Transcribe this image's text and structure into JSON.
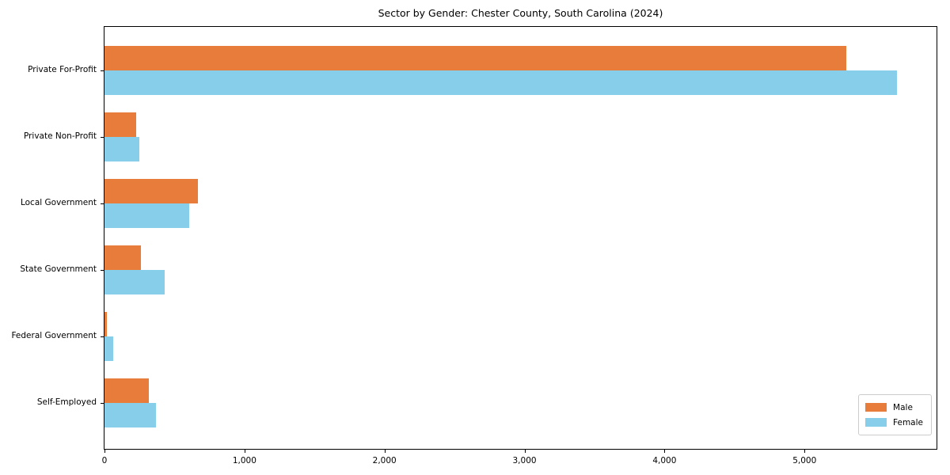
{
  "chart_data": {
    "type": "bar",
    "orientation": "horizontal",
    "title": "Sector by Gender: Chester County, South Carolina (2024)",
    "categories": [
      "Private For-Profit",
      "Private Non-Profit",
      "Local Government",
      "State Government",
      "Federal Government",
      "Self-Employed"
    ],
    "series": [
      {
        "name": "Male",
        "color": "#e87d3b",
        "values": [
          5300,
          225,
          670,
          260,
          15,
          315
        ]
      },
      {
        "name": "Female",
        "color": "#87ceeb",
        "values": [
          5660,
          250,
          605,
          430,
          60,
          365
        ]
      }
    ],
    "xlabel": "",
    "ylabel": "",
    "xlim": [
      0,
      5943
    ],
    "x_ticks": [
      0,
      1000,
      2000,
      3000,
      4000,
      5000
    ],
    "x_tick_labels": [
      "0",
      "1,000",
      "2,000",
      "3,000",
      "4,000",
      "5,000"
    ],
    "grid": false,
    "legend_position": "lower right",
    "background": "#ffffff",
    "spine_color": "#000000"
  }
}
